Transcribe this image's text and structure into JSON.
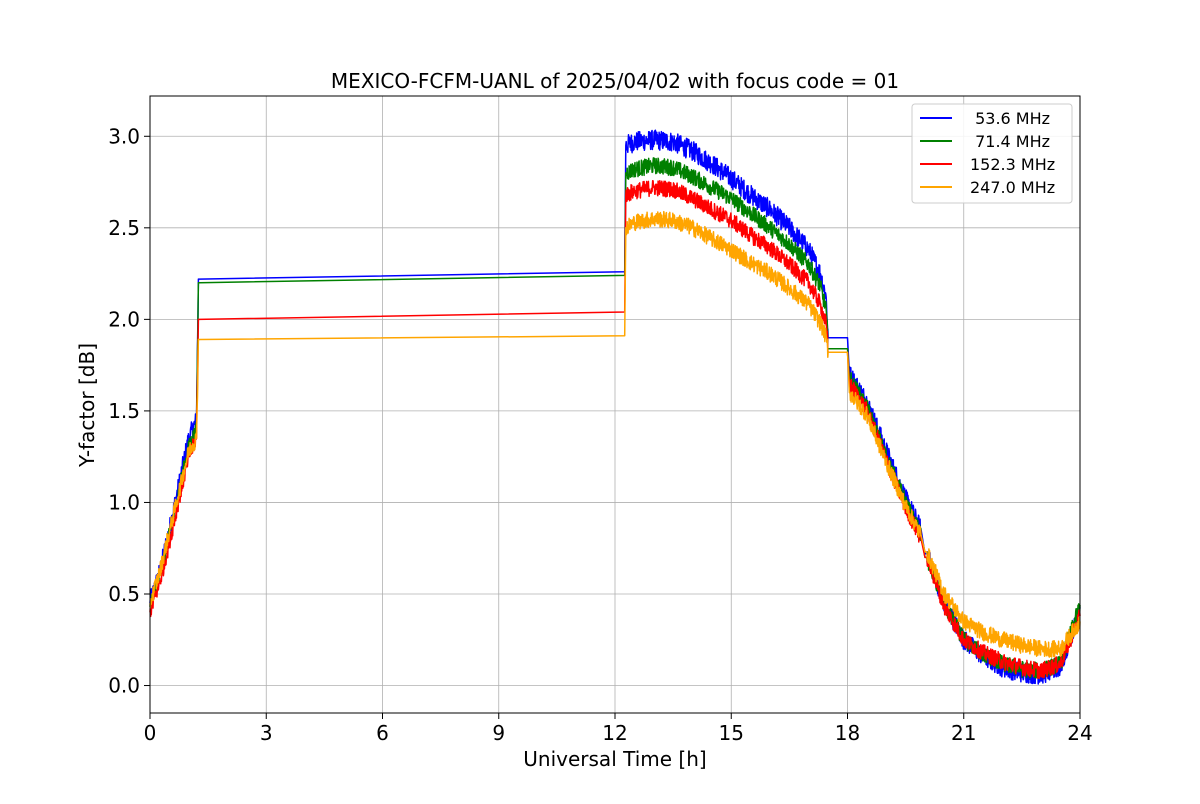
{
  "chart_data": {
    "type": "line",
    "title": "MEXICO-FCFM-UANL of 2025/04/02 with focus code = 01",
    "xlabel": "Universal Time [h]",
    "ylabel": "Y-factor [dB]",
    "xlim": [
      0,
      24
    ],
    "ylim": [
      -0.15,
      3.22
    ],
    "xticks": [
      0,
      3,
      6,
      9,
      12,
      15,
      18,
      21,
      24
    ],
    "yticks": [
      0.0,
      0.5,
      1.0,
      1.5,
      2.0,
      2.5,
      3.0
    ],
    "xtick_labels": [
      "0",
      "3",
      "6",
      "9",
      "12",
      "15",
      "18",
      "21",
      "24"
    ],
    "ytick_labels": [
      "0.0",
      "0.5",
      "1.0",
      "1.5",
      "2.0",
      "2.5",
      "3.0"
    ],
    "grid": true,
    "legend_position": "top-right",
    "series": [
      {
        "name": " 53.6 MHz",
        "color": "#0000ff",
        "noise": 0.055,
        "x": [
          0,
          0.25,
          0.5,
          0.75,
          1.0,
          1.2,
          1.25,
          1.28,
          12.25,
          12.28,
          12.5,
          13,
          13.5,
          14,
          14.5,
          15,
          15.5,
          16,
          16.5,
          17,
          17.3,
          17.45,
          17.5,
          17.55,
          18.0,
          18.05,
          18.5,
          19.0,
          19.5,
          19.9,
          20.0,
          20.05,
          20.5,
          21.0,
          21.5,
          22.0,
          22.5,
          23.0,
          23.5,
          24.0
        ],
        "values": [
          0.45,
          0.62,
          0.85,
          1.1,
          1.35,
          1.45,
          2.22,
          2.22,
          2.26,
          2.95,
          2.97,
          2.98,
          2.97,
          2.92,
          2.85,
          2.77,
          2.68,
          2.6,
          2.5,
          2.38,
          2.25,
          2.12,
          1.9,
          1.9,
          1.9,
          1.7,
          1.55,
          1.28,
          1.02,
          0.85,
          0.72,
          0.72,
          0.45,
          0.25,
          0.16,
          0.1,
          0.07,
          0.06,
          0.1,
          0.42
        ]
      },
      {
        "name": " 71.4 MHz",
        "color": "#008000",
        "noise": 0.045,
        "x": [
          0,
          0.25,
          0.5,
          0.75,
          1.0,
          1.2,
          1.25,
          1.28,
          12.25,
          12.28,
          12.5,
          13,
          13.5,
          14,
          14.5,
          15,
          15.5,
          16,
          16.5,
          17,
          17.3,
          17.45,
          17.5,
          17.55,
          18.0,
          18.05,
          18.5,
          19.0,
          19.5,
          19.9,
          20.0,
          20.05,
          20.5,
          21.0,
          21.5,
          22.0,
          22.5,
          23.0,
          23.5,
          24.0
        ],
        "values": [
          0.43,
          0.6,
          0.82,
          1.07,
          1.3,
          1.4,
          2.2,
          2.2,
          2.24,
          2.8,
          2.82,
          2.84,
          2.83,
          2.78,
          2.72,
          2.66,
          2.58,
          2.5,
          2.41,
          2.3,
          2.18,
          2.05,
          1.84,
          1.84,
          1.84,
          1.68,
          1.52,
          1.25,
          1.0,
          0.82,
          0.7,
          0.7,
          0.44,
          0.25,
          0.17,
          0.12,
          0.09,
          0.08,
          0.12,
          0.44
        ]
      },
      {
        "name": "152.3 MHz",
        "color": "#ff0000",
        "noise": 0.045,
        "x": [
          0,
          0.25,
          0.5,
          0.75,
          1.0,
          1.2,
          1.25,
          1.28,
          12.25,
          12.28,
          12.5,
          13,
          13.5,
          14,
          14.5,
          15,
          15.5,
          16,
          16.5,
          17,
          17.3,
          17.45,
          17.5,
          17.55,
          18.0,
          18.05,
          18.5,
          19.0,
          19.5,
          19.9,
          20.0,
          20.05,
          20.5,
          21.0,
          21.5,
          22.0,
          22.5,
          23.0,
          23.5,
          24.0
        ],
        "values": [
          0.4,
          0.56,
          0.78,
          1.02,
          1.25,
          1.35,
          2.0,
          2.0,
          2.04,
          2.68,
          2.7,
          2.72,
          2.71,
          2.66,
          2.6,
          2.54,
          2.46,
          2.39,
          2.3,
          2.2,
          2.08,
          1.97,
          1.82,
          1.82,
          1.82,
          1.65,
          1.5,
          1.23,
          0.97,
          0.8,
          0.7,
          0.7,
          0.43,
          0.25,
          0.18,
          0.13,
          0.1,
          0.08,
          0.12,
          0.38
        ]
      },
      {
        "name": "247.0 MHz",
        "color": "#ffa500",
        "noise": 0.045,
        "x": [
          0,
          0.25,
          0.5,
          0.75,
          1.0,
          1.2,
          1.25,
          1.28,
          12.25,
          12.28,
          12.5,
          13,
          13.5,
          14,
          14.5,
          15,
          15.5,
          16,
          16.5,
          17,
          17.3,
          17.45,
          17.5,
          17.55,
          18.0,
          18.05,
          18.5,
          19.0,
          19.5,
          19.9,
          20.0,
          20.05,
          20.5,
          21.0,
          21.5,
          22.0,
          22.5,
          23.0,
          23.5,
          24.0
        ],
        "values": [
          0.45,
          0.62,
          0.84,
          1.06,
          1.28,
          1.35,
          1.89,
          1.89,
          1.91,
          2.5,
          2.53,
          2.55,
          2.54,
          2.5,
          2.44,
          2.38,
          2.31,
          2.25,
          2.17,
          2.08,
          1.98,
          1.9,
          1.82,
          1.82,
          1.82,
          1.6,
          1.48,
          1.22,
          0.98,
          0.82,
          0.73,
          0.73,
          0.5,
          0.35,
          0.29,
          0.25,
          0.22,
          0.2,
          0.2,
          0.35
        ]
      }
    ]
  }
}
